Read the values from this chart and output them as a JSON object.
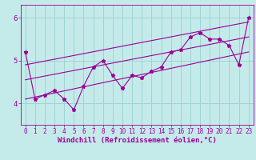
{
  "xlabel": "Windchill (Refroidissement éolien,°C)",
  "x_data": [
    0,
    1,
    2,
    3,
    4,
    5,
    6,
    7,
    8,
    9,
    10,
    11,
    12,
    13,
    14,
    15,
    16,
    17,
    18,
    19,
    20,
    21,
    22,
    23
  ],
  "y_data": [
    5.2,
    4.1,
    4.2,
    4.3,
    4.1,
    3.85,
    4.4,
    4.85,
    5.0,
    4.65,
    4.35,
    4.65,
    4.6,
    4.75,
    4.85,
    5.2,
    5.25,
    5.55,
    5.65,
    5.5,
    5.5,
    5.35,
    4.9,
    6.0
  ],
  "reg_lines": [
    [
      [
        0,
        23
      ],
      [
        4.1,
        5.2
      ]
    ],
    [
      [
        0,
        23
      ],
      [
        4.55,
        5.55
      ]
    ],
    [
      [
        0,
        23
      ],
      [
        4.9,
        5.9
      ]
    ]
  ],
  "ylim": [
    3.5,
    6.3
  ],
  "xlim": [
    -0.5,
    23.5
  ],
  "bg_color": "#c5eaea",
  "grid_color": "#9fd4d4",
  "line_color": "#990099",
  "marker": "*",
  "marker_size": 3.5,
  "line_width": 0.8,
  "xlabel_fontsize": 6.5,
  "tick_fontsize": 5.5,
  "yticks": [
    4,
    5,
    6
  ],
  "xticks": [
    0,
    1,
    2,
    3,
    4,
    5,
    6,
    7,
    8,
    9,
    10,
    11,
    12,
    13,
    14,
    15,
    16,
    17,
    18,
    19,
    20,
    21,
    22,
    23
  ]
}
